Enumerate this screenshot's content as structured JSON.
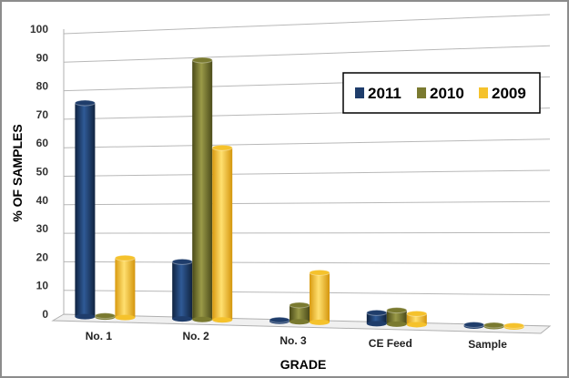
{
  "chart_data": {
    "type": "bar",
    "categories": [
      "No. 1",
      "No. 2",
      "No. 3",
      "CE Feed",
      "Sample"
    ],
    "series": [
      {
        "name": "2011",
        "values": [
          74,
          19,
          0,
          3,
          0
        ]
      },
      {
        "name": "2010",
        "values": [
          0,
          88,
          5,
          4,
          0
        ]
      },
      {
        "name": "2009",
        "values": [
          20,
          58,
          16,
          3,
          0
        ]
      }
    ],
    "xlabel": "GRADE",
    "ylabel": "% OF SAMPLES",
    "ylim": [
      0,
      100
    ],
    "yticks": [
      0,
      10,
      20,
      30,
      40,
      50,
      60,
      70,
      80,
      90,
      100
    ],
    "grid": true,
    "legend": "top-right",
    "colors": [
      "#1f3d6b",
      "#7a7a30",
      "#f5c22c"
    ]
  }
}
